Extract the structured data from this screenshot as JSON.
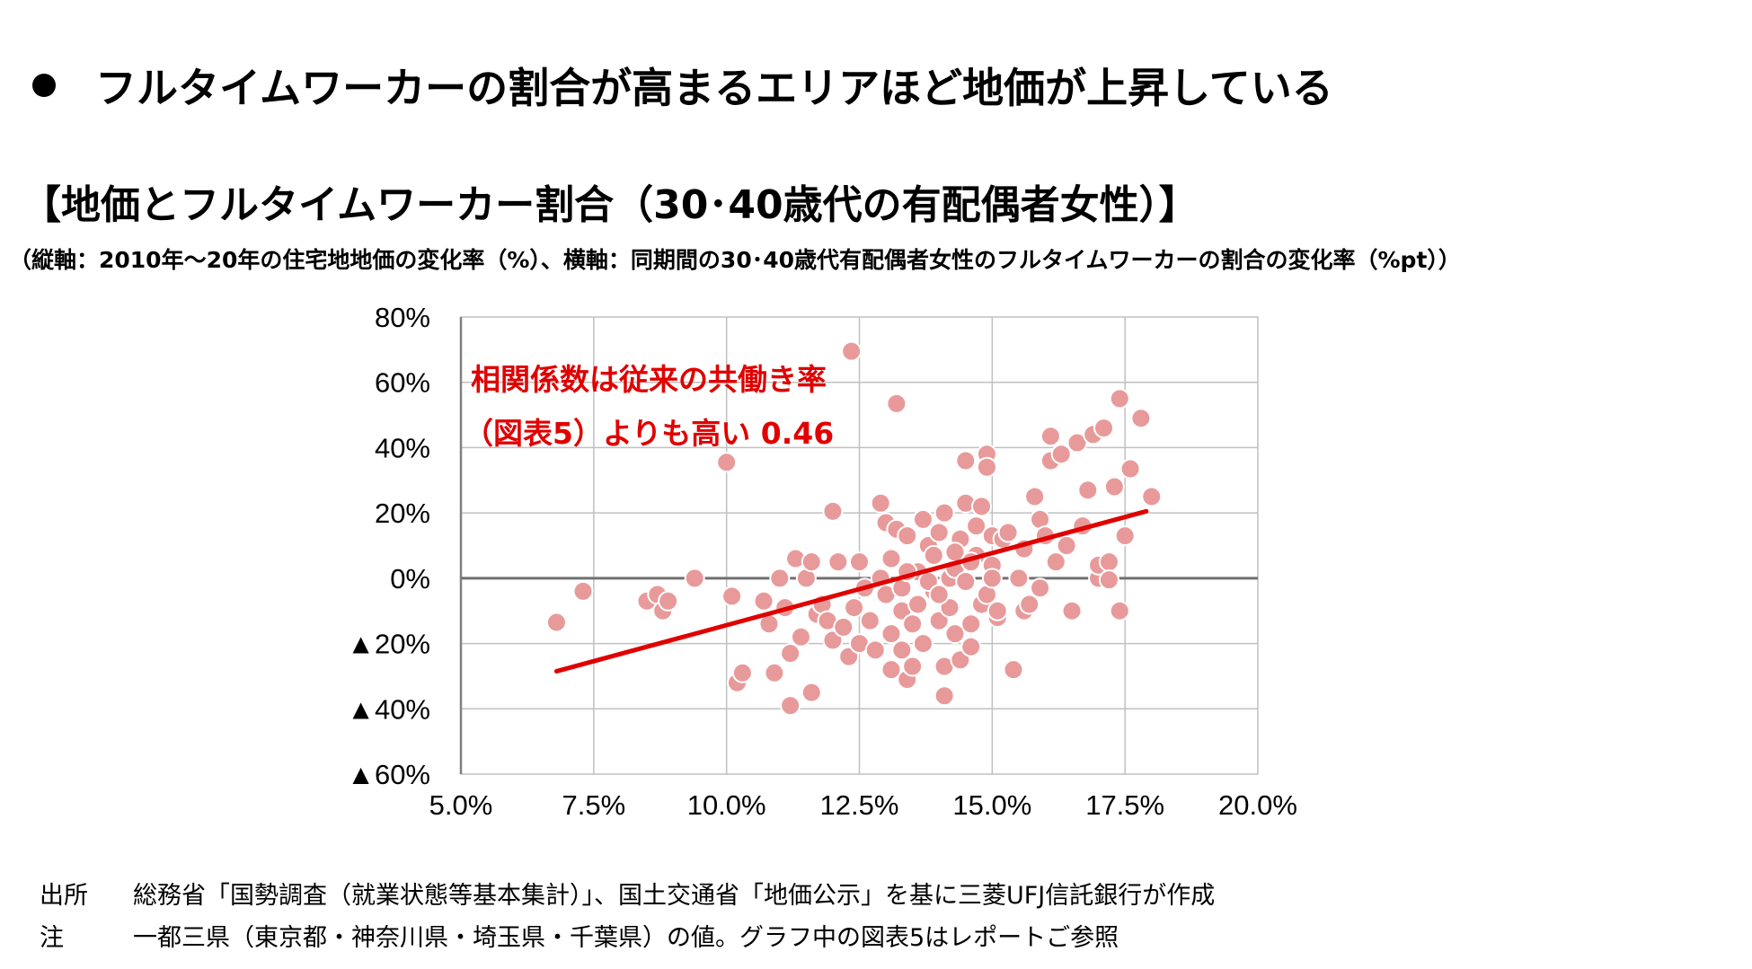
{
  "headline": "フルタイムワーカーの割合が高まるエリアほど地価が上昇している",
  "chart_title": "【地価とフルタイムワーカー割合（30･40歳代の有配偶者女性）】",
  "chart_subtitle": "（縦軸：2010年～20年の住宅地地価の変化率（%）、横軸：同期間の30･40歳代有配偶者女性のフルタイムワーカーの割合の変化率（%pt））",
  "colors": {
    "point_fill": "#e89a9a",
    "point_stroke": "#ffffff",
    "trend_line": "#e00000",
    "annotation": "#e00000",
    "grid": "#c0c0c0",
    "zero_line": "#707070"
  },
  "chart_data": {
    "type": "scatter",
    "title": "地価とフルタイムワーカー割合（30･40歳代の有配偶者女性）",
    "xlabel": "同期間の30･40歳代有配偶者女性のフルタイムワーカーの割合の変化率（%pt）",
    "ylabel": "2010年～20年の住宅地地価の変化率（%）",
    "xlim": [
      5.0,
      20.0
    ],
    "ylim": [
      -60,
      80
    ],
    "x_ticks": [
      5.0,
      7.5,
      10.0,
      12.5,
      15.0,
      17.5,
      20.0
    ],
    "x_tick_labels": [
      "5.0%",
      "7.5%",
      "10.0%",
      "12.5%",
      "15.0%",
      "17.5%",
      "20.0%"
    ],
    "y_ticks": [
      80,
      60,
      40,
      20,
      0,
      -20,
      -40,
      -60
    ],
    "y_tick_labels": [
      "80%",
      "60%",
      "40%",
      "20%",
      "0%",
      "▲20%",
      "▲40%",
      "▲60%"
    ],
    "grid": true,
    "annotation": {
      "line1": "相関係数は従来の共働き率",
      "line2": "（図表5）よりも高い 0.46",
      "value": 0.46
    },
    "trend_line": {
      "x": [
        6.8,
        17.9
      ],
      "y": [
        -28.5,
        20.5
      ]
    },
    "points": [
      [
        6.8,
        -13.5
      ],
      [
        7.3,
        -4
      ],
      [
        8.5,
        -7
      ],
      [
        8.7,
        -5
      ],
      [
        8.8,
        -10
      ],
      [
        8.9,
        -7
      ],
      [
        9.4,
        0
      ],
      [
        10.0,
        35.5
      ],
      [
        10.1,
        -5.5
      ],
      [
        10.2,
        -32
      ],
      [
        10.3,
        -29
      ],
      [
        10.7,
        -7
      ],
      [
        10.8,
        -14
      ],
      [
        10.9,
        -29
      ],
      [
        11.0,
        0
      ],
      [
        11.1,
        -9
      ],
      [
        11.2,
        -39
      ],
      [
        11.2,
        -23
      ],
      [
        11.3,
        6
      ],
      [
        11.4,
        -18
      ],
      [
        11.5,
        0
      ],
      [
        11.6,
        -35
      ],
      [
        11.6,
        5
      ],
      [
        11.7,
        -11
      ],
      [
        11.8,
        -8
      ],
      [
        11.9,
        -13
      ],
      [
        12.0,
        20.5
      ],
      [
        12.0,
        -19
      ],
      [
        12.1,
        5
      ],
      [
        12.2,
        -15
      ],
      [
        12.3,
        -24
      ],
      [
        12.35,
        69.5
      ],
      [
        12.4,
        -9
      ],
      [
        12.5,
        5
      ],
      [
        12.5,
        -20
      ],
      [
        12.6,
        -3
      ],
      [
        12.7,
        -13
      ],
      [
        12.8,
        -22
      ],
      [
        12.9,
        23
      ],
      [
        12.9,
        0
      ],
      [
        13.0,
        17
      ],
      [
        13.0,
        -5
      ],
      [
        13.1,
        6
      ],
      [
        13.1,
        -17
      ],
      [
        13.1,
        -28
      ],
      [
        13.2,
        53.5
      ],
      [
        13.2,
        15
      ],
      [
        13.3,
        -3
      ],
      [
        13.3,
        -10
      ],
      [
        13.3,
        -22
      ],
      [
        13.4,
        -31
      ],
      [
        13.4,
        13
      ],
      [
        13.5,
        -27
      ],
      [
        13.5,
        -14
      ],
      [
        13.6,
        2
      ],
      [
        13.6,
        -8
      ],
      [
        13.7,
        -20
      ],
      [
        13.7,
        18
      ],
      [
        13.8,
        10
      ],
      [
        13.9,
        7
      ],
      [
        13.9,
        -4
      ],
      [
        14.0,
        -13
      ],
      [
        14.0,
        14
      ],
      [
        14.1,
        20
      ],
      [
        14.1,
        -27
      ],
      [
        14.1,
        -36
      ],
      [
        14.2,
        0
      ],
      [
        14.2,
        -9
      ],
      [
        14.3,
        3
      ],
      [
        14.3,
        -17
      ],
      [
        14.4,
        -25
      ],
      [
        14.4,
        12
      ],
      [
        14.5,
        36
      ],
      [
        14.5,
        23
      ],
      [
        14.5,
        -1
      ],
      [
        14.6,
        -21
      ],
      [
        14.6,
        -14
      ],
      [
        14.7,
        7
      ],
      [
        14.7,
        16
      ],
      [
        14.8,
        -8
      ],
      [
        14.8,
        22
      ],
      [
        14.9,
        38
      ],
      [
        14.9,
        34
      ],
      [
        14.9,
        -5
      ],
      [
        15.0,
        4
      ],
      [
        15.0,
        13
      ],
      [
        15.1,
        -12
      ],
      [
        15.1,
        -10
      ],
      [
        15.2,
        12
      ],
      [
        15.3,
        14
      ],
      [
        15.4,
        -28
      ],
      [
        15.5,
        0
      ],
      [
        15.6,
        -10
      ],
      [
        15.6,
        9
      ],
      [
        15.7,
        -8
      ],
      [
        15.8,
        25
      ],
      [
        15.9,
        -3
      ],
      [
        15.9,
        18
      ],
      [
        16.0,
        13
      ],
      [
        16.1,
        43.5
      ],
      [
        16.1,
        36
      ],
      [
        16.2,
        5
      ],
      [
        16.3,
        38
      ],
      [
        16.4,
        10
      ],
      [
        16.5,
        -10
      ],
      [
        16.6,
        41.5
      ],
      [
        16.7,
        16
      ],
      [
        16.8,
        27
      ],
      [
        16.9,
        44
      ],
      [
        17.0,
        0
      ],
      [
        17.0,
        4
      ],
      [
        17.1,
        46
      ],
      [
        17.2,
        5
      ],
      [
        17.2,
        -0.5
      ],
      [
        17.3,
        28
      ],
      [
        17.4,
        55
      ],
      [
        17.4,
        -10
      ],
      [
        17.5,
        13
      ],
      [
        17.6,
        33.5
      ],
      [
        17.8,
        49
      ],
      [
        18.0,
        25
      ],
      [
        13.4,
        2
      ],
      [
        13.8,
        -1
      ],
      [
        14.0,
        -5
      ],
      [
        14.3,
        8
      ],
      [
        14.6,
        5
      ],
      [
        15.0,
        0
      ]
    ]
  },
  "footnotes": [
    {
      "label": "出所",
      "text": "総務省「国勢調査（就業状態等基本集計）」、国土交通省「地価公示」を基に三菱UFJ信託銀行が作成"
    },
    {
      "label": "注",
      "text": "一都三県（東京都・神奈川県・埼玉県・千葉県）の値。グラフ中の図表5はレポートご参照"
    }
  ]
}
